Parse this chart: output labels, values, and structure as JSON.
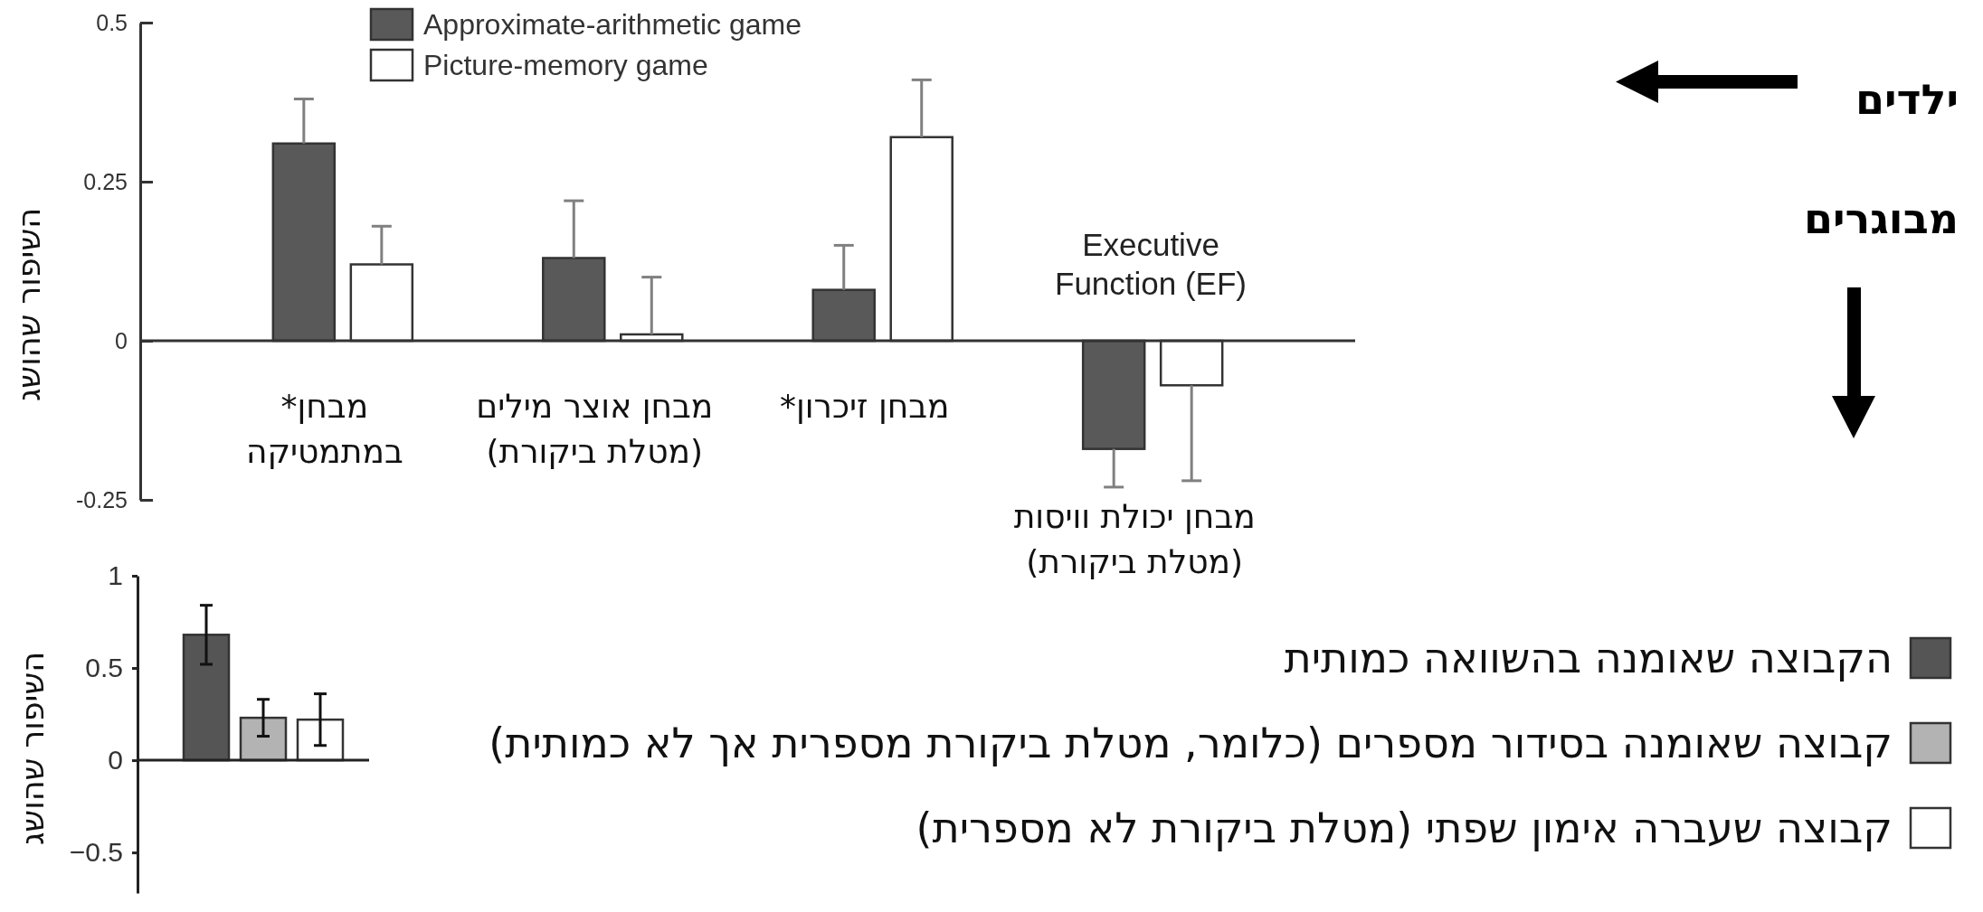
{
  "chart_data": [
    {
      "type": "bar",
      "categories": [
        "מבחן*\nבמתמטיקה",
        "מבחן אוצר מילים\n(מטלת ביקורת)",
        "מבחן זיכרון*",
        "מבחן יכולת וויסות\n(מטלת ביקורת)"
      ],
      "ylabel": "השיפור שהושג",
      "series": [
        {
          "name": "Approximate-arithmetic game",
          "color": "#595959",
          "values": [
            0.31,
            0.13,
            0.08,
            -0.17
          ],
          "errors": [
            [
              0.31,
              0.38
            ],
            [
              0.13,
              0.22
            ],
            [
              0.08,
              0.15
            ],
            [
              -0.23,
              -0.17
            ]
          ]
        },
        {
          "name": "Picture-memory game",
          "color": "#ffffff",
          "values": [
            0.12,
            0.01,
            0.32,
            -0.07
          ],
          "errors": [
            [
              0.12,
              0.18
            ],
            [
              0.01,
              0.1
            ],
            [
              0.32,
              0.41
            ],
            [
              -0.22,
              -0.07
            ]
          ]
        }
      ],
      "ylim": [
        -0.25,
        0.5
      ],
      "yticks": [
        -0.25,
        0,
        0.25,
        0.5
      ],
      "legend": "top left",
      "annotations": [
        "Executive\nFunction (EF)",
        "ילדים",
        "מבוגרים"
      ]
    },
    {
      "type": "bar",
      "categories": [
        null
      ],
      "ylabel": "השיפור שהושג",
      "series": [
        {
          "name": "הקבוצה שאומנה בהשוואה כמותית",
          "color": "#555555",
          "values": [
            0.68
          ],
          "errors": [
            0.16
          ]
        },
        {
          "name": "קבוצה שאומנה בסידור מספרים (כלומר, מטלת ביקורת מספרית אך לא כמותית)",
          "color": "#b3b3b3",
          "values": [
            0.23
          ],
          "errors": [
            0.1
          ]
        },
        {
          "name": "קבוצה שעברה אימון שפתי (מטלת ביקורת לא מספרית)",
          "color": "#ffffff",
          "values": [
            0.22
          ],
          "errors": [
            0.14
          ]
        }
      ],
      "ylim": [
        -0.72,
        1
      ],
      "yticks": [
        {
          "value": -0.5,
          "label": "−0.5"
        },
        0,
        0.5,
        1
      ],
      "legend": "right"
    }
  ]
}
